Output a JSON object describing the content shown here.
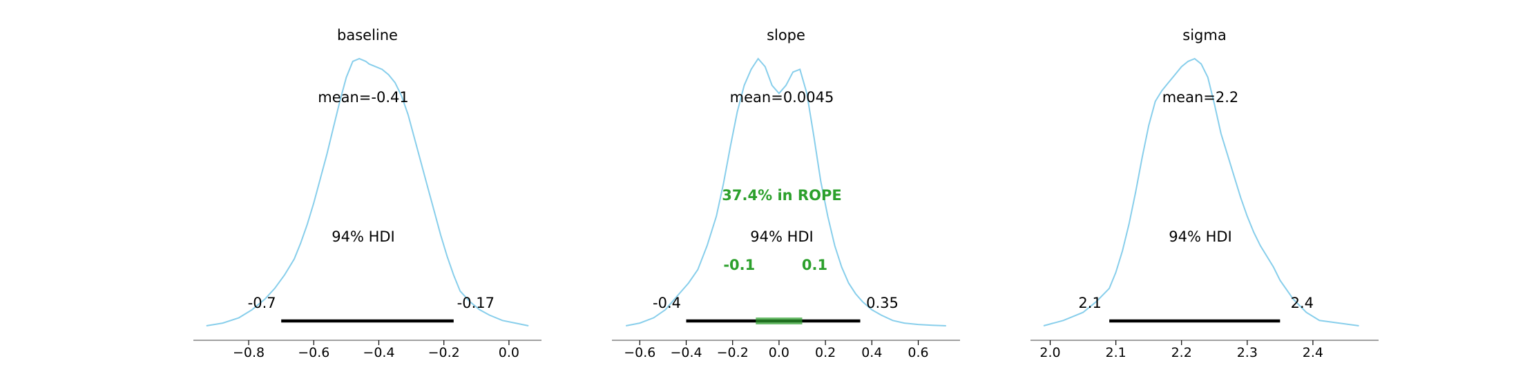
{
  "colors": {
    "kde": "#87ceeb",
    "hdi": "#000000",
    "rope": "#2ca02c",
    "axis": "#808080"
  },
  "chart_data": [
    {
      "type": "area",
      "title": "baseline",
      "mean_label": "mean=-0.41",
      "hdi_label": "94% HDI",
      "hdi": [
        -0.7,
        -0.17
      ],
      "hdi_low_label": "-0.7",
      "hdi_high_label": "-0.17",
      "xlim": [
        -0.97,
        0.1
      ],
      "xticks": [
        -0.8,
        -0.6,
        -0.4,
        -0.2,
        0.0
      ],
      "xtick_labels": [
        "−0.8",
        "−0.6",
        "−0.4",
        "−0.2",
        "0.0"
      ],
      "x": [
        -0.93,
        -0.88,
        -0.83,
        -0.79,
        -0.75,
        -0.72,
        -0.69,
        -0.66,
        -0.64,
        -0.62,
        -0.6,
        -0.58,
        -0.56,
        -0.54,
        -0.52,
        -0.5,
        -0.48,
        -0.46,
        -0.44,
        -0.43,
        -0.41,
        -0.39,
        -0.37,
        -0.35,
        -0.33,
        -0.31,
        -0.29,
        -0.27,
        -0.25,
        -0.23,
        -0.21,
        -0.19,
        -0.17,
        -0.15,
        -0.12,
        -0.09,
        -0.06,
        -0.02,
        0.02,
        0.06
      ],
      "y": [
        0.0,
        0.01,
        0.03,
        0.06,
        0.1,
        0.14,
        0.19,
        0.25,
        0.31,
        0.38,
        0.46,
        0.55,
        0.64,
        0.74,
        0.84,
        0.93,
        0.99,
        1.0,
        0.99,
        0.98,
        0.97,
        0.96,
        0.94,
        0.91,
        0.86,
        0.79,
        0.7,
        0.61,
        0.52,
        0.43,
        0.34,
        0.26,
        0.19,
        0.13,
        0.09,
        0.06,
        0.04,
        0.02,
        0.01,
        0.0
      ]
    },
    {
      "type": "area",
      "title": "slope",
      "mean_label": "mean=0.0045",
      "hdi_label": "94% HDI",
      "hdi": [
        -0.4,
        0.35
      ],
      "hdi_low_label": "-0.4",
      "hdi_high_label": "0.35",
      "rope": [
        -0.1,
        0.1
      ],
      "rope_label": "37.4% in ROPE",
      "rope_low_label": "-0.1",
      "rope_high_label": "0.1",
      "xlim": [
        -0.72,
        0.78
      ],
      "xticks": [
        -0.6,
        -0.4,
        -0.2,
        0.0,
        0.2,
        0.4,
        0.6
      ],
      "xtick_labels": [
        "−0.6",
        "−0.4",
        "−0.2",
        "0.0",
        "0.2",
        "0.4",
        "0.6"
      ],
      "x": [
        -0.66,
        -0.6,
        -0.54,
        -0.49,
        -0.44,
        -0.39,
        -0.35,
        -0.31,
        -0.27,
        -0.24,
        -0.21,
        -0.18,
        -0.15,
        -0.12,
        -0.09,
        -0.06,
        -0.03,
        0.0,
        0.03,
        0.06,
        0.09,
        0.12,
        0.15,
        0.18,
        0.21,
        0.24,
        0.27,
        0.3,
        0.33,
        0.36,
        0.4,
        0.44,
        0.49,
        0.54,
        0.6,
        0.66,
        0.72
      ],
      "y": [
        0.0,
        0.01,
        0.03,
        0.06,
        0.11,
        0.16,
        0.21,
        0.3,
        0.41,
        0.53,
        0.67,
        0.8,
        0.9,
        0.96,
        1.0,
        0.97,
        0.9,
        0.87,
        0.9,
        0.95,
        0.96,
        0.87,
        0.71,
        0.54,
        0.41,
        0.3,
        0.22,
        0.16,
        0.12,
        0.09,
        0.06,
        0.04,
        0.02,
        0.01,
        0.005,
        0.002,
        0.0
      ]
    },
    {
      "type": "area",
      "title": "sigma",
      "mean_label": "mean=2.2",
      "hdi_label": "94% HDI",
      "hdi": [
        2.09,
        2.35
      ],
      "hdi_low_label": "2.1",
      "hdi_high_label": "2.4",
      "xlim": [
        1.97,
        2.5
      ],
      "xticks": [
        2.0,
        2.1,
        2.2,
        2.3,
        2.4
      ],
      "xtick_labels": [
        "2.0",
        "2.1",
        "2.2",
        "2.3",
        "2.4"
      ],
      "x": [
        1.99,
        2.02,
        2.05,
        2.07,
        2.09,
        2.1,
        2.11,
        2.12,
        2.13,
        2.14,
        2.15,
        2.16,
        2.17,
        2.18,
        2.19,
        2.2,
        2.21,
        2.22,
        2.23,
        2.24,
        2.25,
        2.26,
        2.27,
        2.28,
        2.29,
        2.3,
        2.31,
        2.32,
        2.33,
        2.34,
        2.35,
        2.37,
        2.39,
        2.41,
        2.44,
        2.47
      ],
      "y": [
        0.0,
        0.02,
        0.05,
        0.09,
        0.14,
        0.2,
        0.28,
        0.38,
        0.5,
        0.63,
        0.75,
        0.84,
        0.88,
        0.91,
        0.94,
        0.97,
        0.99,
        1.0,
        0.98,
        0.93,
        0.83,
        0.72,
        0.64,
        0.56,
        0.48,
        0.41,
        0.35,
        0.3,
        0.26,
        0.22,
        0.17,
        0.1,
        0.05,
        0.02,
        0.01,
        0.0
      ]
    }
  ]
}
